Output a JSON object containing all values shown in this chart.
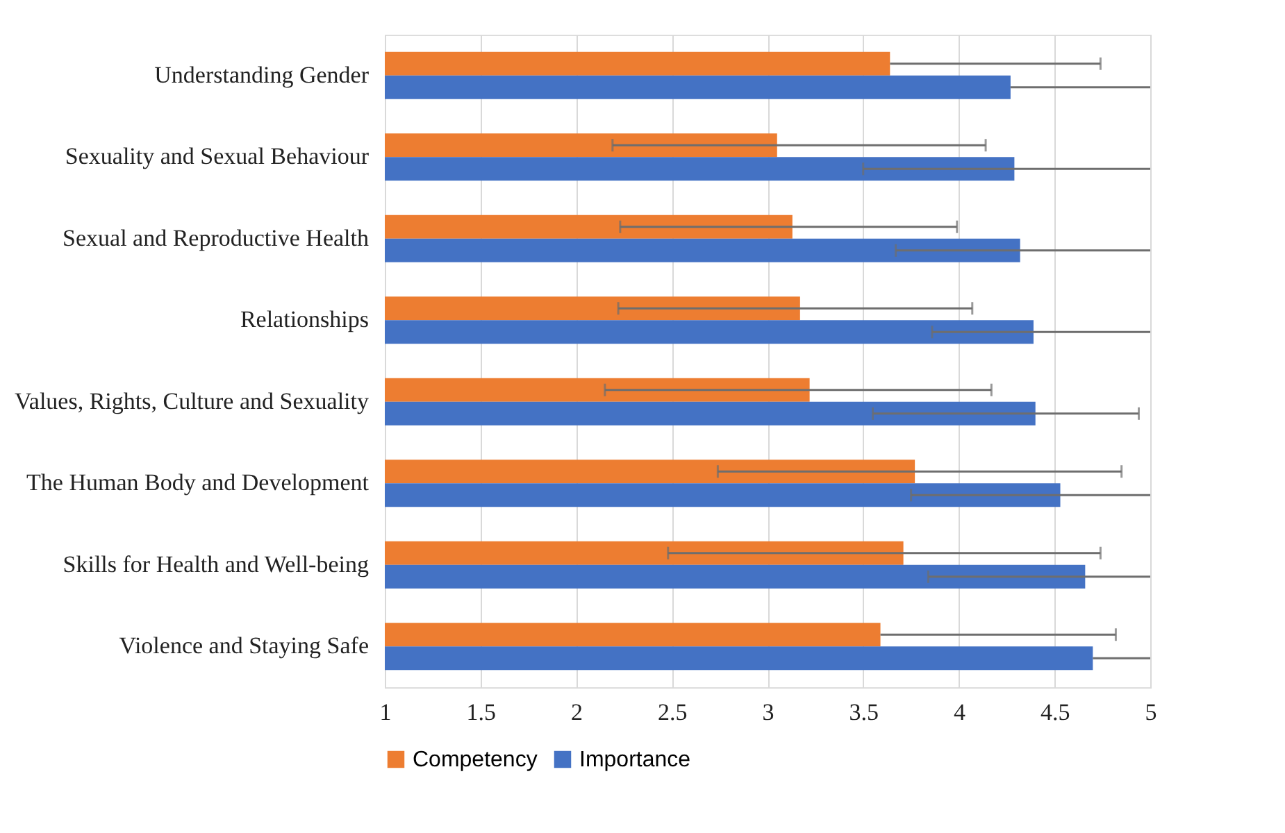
{
  "chart_data": {
    "type": "bar",
    "orientation": "horizontal",
    "categories": [
      "Understanding Gender",
      "Sexuality and Sexual Behaviour",
      "Sexual and Reproductive Health",
      "Relationships",
      "Values, Rights, Culture and Sexuality",
      "The Human Body and Development",
      "Skills for Health and Well-being",
      "Violence and Staying Safe"
    ],
    "series": [
      {
        "name": "Competency",
        "color": "#ed7d31",
        "values": [
          3.64,
          3.05,
          3.13,
          3.17,
          3.22,
          3.77,
          3.71,
          3.59
        ],
        "errors": [
          [
            3.64,
            4.74
          ],
          [
            2.19,
            4.14
          ],
          [
            2.23,
            3.99
          ],
          [
            2.22,
            4.07
          ],
          [
            2.15,
            4.17
          ],
          [
            2.74,
            4.85
          ],
          [
            2.48,
            4.74
          ],
          [
            3.59,
            4.82
          ]
        ]
      },
      {
        "name": "Importance",
        "color": "#4472c4",
        "values": [
          4.27,
          4.29,
          4.32,
          4.39,
          4.4,
          4.53,
          4.66,
          4.7
        ],
        "errors": [
          [
            4.27,
            5
          ],
          [
            3.5,
            5
          ],
          [
            3.67,
            5
          ],
          [
            3.86,
            5
          ],
          [
            3.55,
            4.94
          ],
          [
            3.75,
            5
          ],
          [
            3.84,
            5
          ],
          [
            4.7,
            5
          ]
        ]
      }
    ],
    "xlim": [
      1,
      5
    ],
    "xticks": [
      1,
      1.5,
      2,
      2.5,
      3,
      3.5,
      4,
      4.5,
      5
    ],
    "grid": "x",
    "legend": "bottom"
  }
}
